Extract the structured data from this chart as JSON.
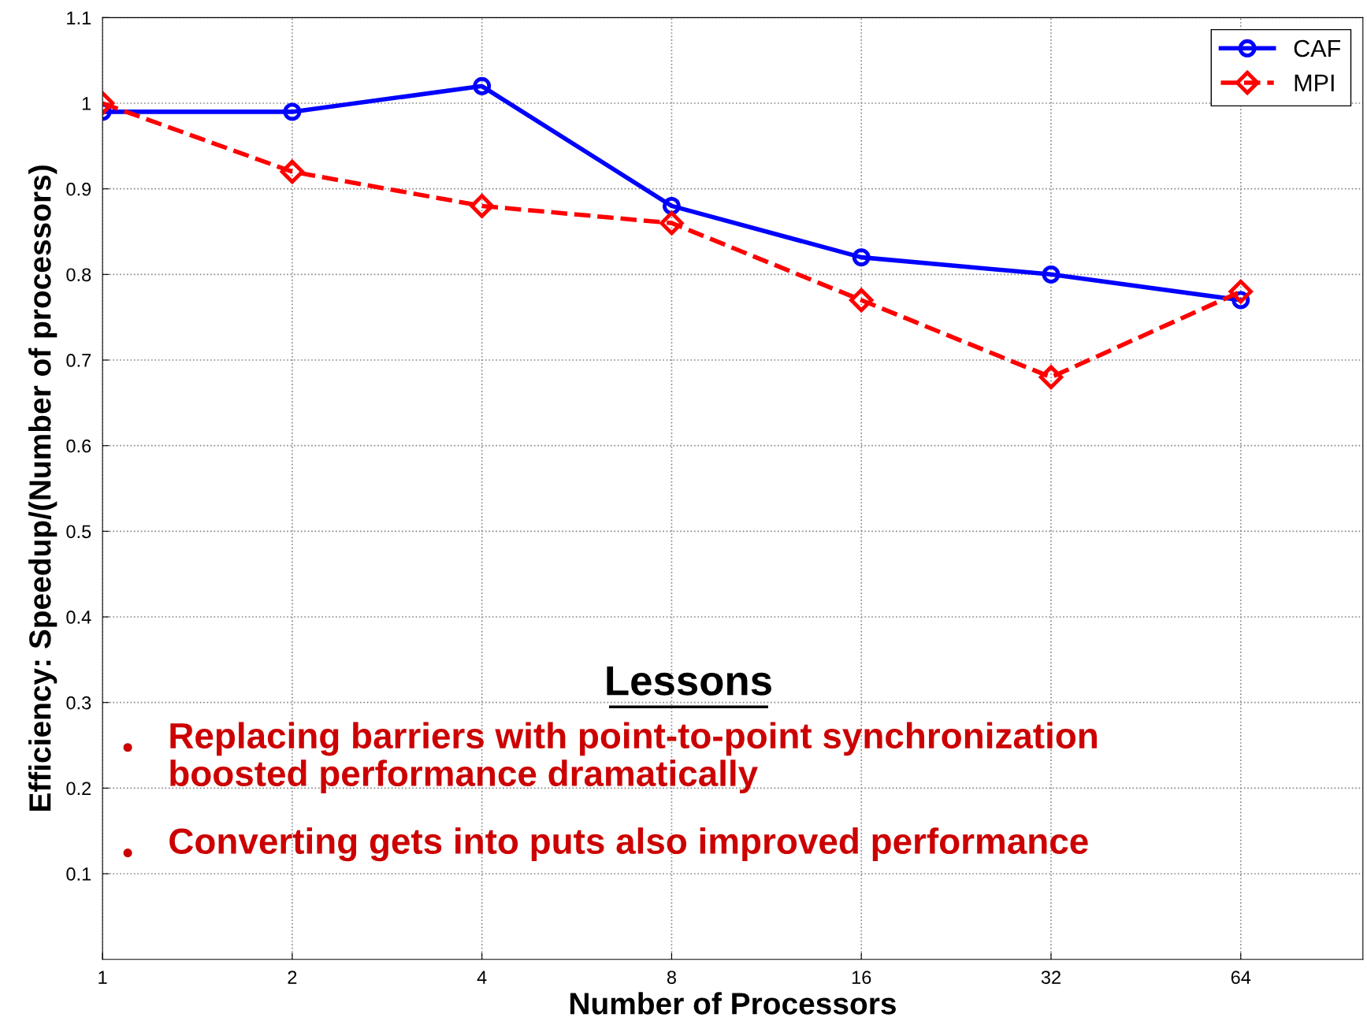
{
  "chart_data": {
    "type": "line",
    "xlabel": "Number of Processors",
    "ylabel": "Efficiency: Speedup/(Number of processors)",
    "x": [
      1,
      2,
      4,
      8,
      16,
      32,
      64
    ],
    "log": "x",
    "series": [
      {
        "name": "CAF",
        "color": "#0000ff",
        "values": [
          0.99,
          0.99,
          1.02,
          0.88,
          0.82,
          0.8,
          0.77
        ],
        "marker": "circle",
        "line_style": "solid"
      },
      {
        "name": "MPI",
        "color": "#ff0000",
        "values": [
          1.0,
          0.92,
          0.88,
          0.86,
          0.77,
          0.68,
          0.78
        ],
        "marker": "diamond",
        "line_style": "dashed"
      }
    ],
    "xlim": [
      1,
      100
    ],
    "xticks": [
      1,
      2,
      4,
      8,
      16,
      32,
      64
    ],
    "ylim": [
      0,
      1.1
    ],
    "yticks": [
      0.1,
      0.2,
      0.3,
      0.4,
      0.5,
      0.6,
      0.7,
      0.8,
      0.9,
      1,
      1.1
    ],
    "grid": true,
    "legend": "top right",
    "annotations": [
      "Lessons",
      "Replacing barriers with point-to-point synchronization\nboosted performance dramatically",
      "Converting gets into puts also improved performance"
    ]
  }
}
